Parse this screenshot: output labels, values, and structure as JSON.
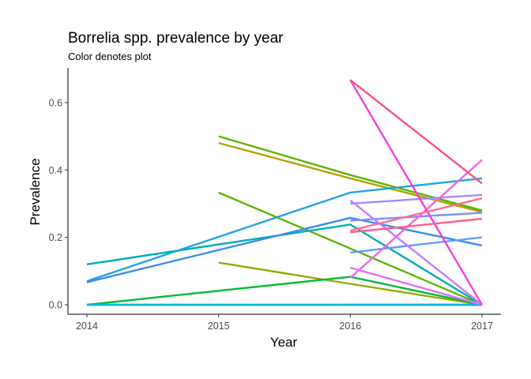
{
  "chart_data": {
    "type": "line",
    "title": "Borrelia spp. prevalence by year",
    "subtitle": "Color denotes plot",
    "xlabel": "Year",
    "ylabel": "Prevalence",
    "xlim": [
      2014,
      2017
    ],
    "ylim": [
      0,
      0.67
    ],
    "x_ticks": [
      2014,
      2015,
      2016,
      2017
    ],
    "y_ticks": [
      0.0,
      0.2,
      0.4,
      0.6
    ],
    "y_tick_labels": [
      "0.0",
      "0.2",
      "0.4",
      "0.6"
    ],
    "grid": false,
    "legend": "none",
    "series": [
      {
        "color": "#F8766D",
        "x": [
          2016,
          2017
        ],
        "y": [
          0.0,
          0.0
        ]
      },
      {
        "color": "#E88526",
        "x": [
          2016,
          2017
        ],
        "y": [
          0.0,
          0.0
        ]
      },
      {
        "color": "#B79F00",
        "x": [
          2015,
          2016,
          2017
        ],
        "y": [
          0.48,
          0.375,
          0.275
        ]
      },
      {
        "color": "#93AA00",
        "x": [
          2015,
          2016,
          2017
        ],
        "y": [
          0.125,
          0.062,
          0.0
        ]
      },
      {
        "color": "#5EB300",
        "x": [
          2015,
          2016,
          2017
        ],
        "y": [
          0.5,
          0.385,
          0.28
        ]
      },
      {
        "color": "#5EB300",
        "x": [
          2015,
          2016,
          2017
        ],
        "y": [
          0.333,
          0.167,
          0.0
        ]
      },
      {
        "color": "#00BA38",
        "x": [
          2014,
          2016,
          2017
        ],
        "y": [
          0.0,
          0.083,
          0.0
        ]
      },
      {
        "color": "#00C19F",
        "x": [
          2014,
          2016,
          2017
        ],
        "y": [
          0.0,
          0.0,
          0.0
        ]
      },
      {
        "color": "#00B9E3",
        "x": [
          2014,
          2016,
          2017
        ],
        "y": [
          0.0,
          0.0,
          0.0
        ]
      },
      {
        "color": "#00ADB8",
        "x": [
          2014,
          2016,
          2017
        ],
        "y": [
          0.12,
          0.238,
          0.0
        ]
      },
      {
        "color": "#1FA2E8",
        "x": [
          2014,
          2016,
          2017
        ],
        "y": [
          0.07,
          0.333,
          0.375
        ]
      },
      {
        "color": "#3A8DEA",
        "x": [
          2014,
          2016,
          2017
        ],
        "y": [
          0.067,
          0.258,
          0.176
        ]
      },
      {
        "color": "#619CFF",
        "x": [
          2016,
          2017
        ],
        "y": [
          0.155,
          0.2
        ]
      },
      {
        "color": "#7F8FFF",
        "x": [
          2016,
          2017
        ],
        "y": [
          0.25,
          0.273
        ]
      },
      {
        "color": "#A58AFF",
        "x": [
          2016,
          2017
        ],
        "y": [
          0.3,
          0.326
        ]
      },
      {
        "color": "#C77CFF",
        "x": [
          2016,
          2017
        ],
        "y": [
          0.31,
          0.0
        ]
      },
      {
        "color": "#DF70F8",
        "x": [
          2016,
          2017
        ],
        "y": [
          0.11,
          0.0
        ]
      },
      {
        "color": "#F564E3",
        "x": [
          2016,
          2017
        ],
        "y": [
          0.08,
          0.43
        ]
      },
      {
        "color": "#F43FE0",
        "x": [
          2016,
          2017
        ],
        "y": [
          0.667,
          0.0
        ]
      },
      {
        "color": "#FF6C91",
        "x": [
          2016,
          2017
        ],
        "y": [
          0.22,
          0.316
        ]
      },
      {
        "color": "#FF5C8A",
        "x": [
          2016,
          2017
        ],
        "y": [
          0.215,
          0.255
        ]
      },
      {
        "color": "#FF4F7A",
        "x": [
          2016,
          2017
        ],
        "y": [
          0.667,
          0.36
        ]
      }
    ]
  }
}
